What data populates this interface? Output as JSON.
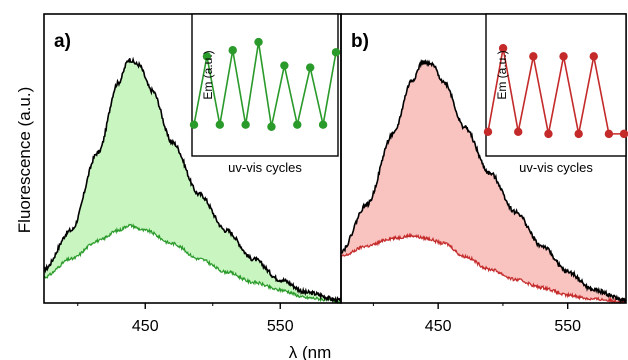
{
  "figure": {
    "ylabel": "Fluorescence (a.u.)",
    "xlabel": "λ (nm"
  },
  "chart_data": [
    {
      "type": "area",
      "panel_label": "a)",
      "xlim": [
        375,
        595
      ],
      "ylim": [
        0,
        1.0
      ],
      "x_ticks": [
        450,
        550
      ],
      "colors": {
        "fill": "#c8f5c0",
        "high_line": "#000000",
        "low_line": "#2a9a2a"
      },
      "series": [
        {
          "x": [
            375,
            395,
            415,
            430,
            438,
            445,
            455,
            470,
            490,
            510,
            530,
            550,
            570,
            595
          ],
          "y": [
            0.13,
            0.28,
            0.58,
            0.85,
            0.94,
            0.92,
            0.82,
            0.62,
            0.42,
            0.28,
            0.17,
            0.09,
            0.04,
            0.01
          ]
        },
        {
          "x": [
            375,
            395,
            415,
            430,
            438,
            450,
            470,
            490,
            510,
            530,
            550,
            570,
            595
          ],
          "y": [
            0.1,
            0.17,
            0.24,
            0.28,
            0.3,
            0.28,
            0.23,
            0.17,
            0.12,
            0.08,
            0.05,
            0.02,
            0.005
          ]
        }
      ],
      "inset": {
        "type": "line",
        "xlabel": "uv-vis cycles",
        "ylabel": "Em (a.u.)",
        "color": "#2a9a2a",
        "x": [
          0,
          1,
          2,
          3,
          4,
          5,
          6,
          7,
          8,
          9,
          10,
          11
        ],
        "y": [
          0.15,
          0.82,
          0.15,
          0.88,
          0.15,
          0.96,
          0.13,
          0.73,
          0.15,
          0.71,
          0.15,
          0.86
        ]
      }
    },
    {
      "type": "area",
      "panel_label": "b)",
      "xlim": [
        375,
        595
      ],
      "ylim": [
        0,
        1.0
      ],
      "x_ticks": [
        450,
        550
      ],
      "colors": {
        "fill": "#f9c3c0",
        "high_line": "#000000",
        "low_line": "#c42a2a"
      },
      "series": [
        {
          "x": [
            375,
            395,
            415,
            430,
            438,
            445,
            455,
            470,
            490,
            510,
            530,
            550,
            570,
            595
          ],
          "y": [
            0.2,
            0.38,
            0.65,
            0.86,
            0.93,
            0.92,
            0.85,
            0.68,
            0.5,
            0.35,
            0.22,
            0.12,
            0.05,
            0.01
          ]
        },
        {
          "x": [
            375,
            395,
            415,
            430,
            440,
            455,
            470,
            490,
            510,
            530,
            550,
            570,
            595
          ],
          "y": [
            0.18,
            0.22,
            0.25,
            0.26,
            0.25,
            0.23,
            0.18,
            0.13,
            0.09,
            0.06,
            0.03,
            0.015,
            0.005
          ]
        }
      ],
      "inset": {
        "type": "line",
        "xlabel": "uv-vis cycles",
        "ylabel": "Em (a.u.)",
        "color": "#c42a2a",
        "x": [
          0,
          1,
          2,
          3,
          4,
          5,
          6,
          7,
          8,
          9
        ],
        "y": [
          0.08,
          0.9,
          0.08,
          0.82,
          0.06,
          0.82,
          0.06,
          0.82,
          0.06,
          0.06
        ]
      }
    }
  ]
}
